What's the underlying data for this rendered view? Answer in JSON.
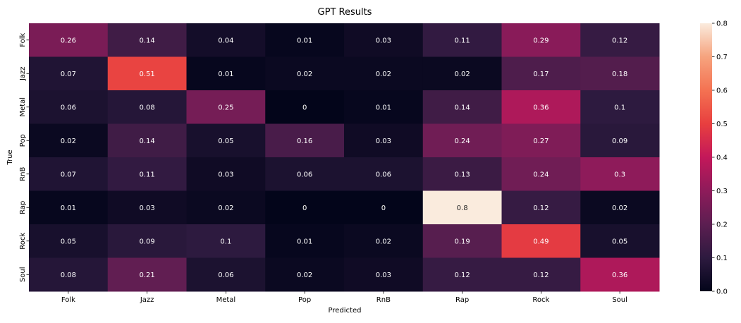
{
  "chart_data": {
    "type": "heatmap",
    "title": "GPT Results",
    "xlabel": "Predicted",
    "ylabel": "True",
    "x_categories": [
      "Folk",
      "Jazz",
      "Metal",
      "Pop",
      "RnB",
      "Rap",
      "Rock",
      "Soul"
    ],
    "y_categories": [
      "Folk",
      "Jazz",
      "Metal",
      "Pop",
      "RnB",
      "Rap",
      "Rock",
      "Soul"
    ],
    "values": [
      [
        0.26,
        0.14,
        0.04,
        0.01,
        0.03,
        0.11,
        0.29,
        0.12
      ],
      [
        0.07,
        0.51,
        0.01,
        0.02,
        0.02,
        0.02,
        0.17,
        0.18
      ],
      [
        0.06,
        0.08,
        0.25,
        0,
        0.01,
        0.14,
        0.36,
        0.1
      ],
      [
        0.02,
        0.14,
        0.05,
        0.16,
        0.03,
        0.24,
        0.27,
        0.09
      ],
      [
        0.07,
        0.11,
        0.03,
        0.06,
        0.06,
        0.13,
        0.24,
        0.3
      ],
      [
        0.01,
        0.03,
        0.02,
        0,
        0,
        0.8,
        0.12,
        0.02
      ],
      [
        0.05,
        0.09,
        0.1,
        0.01,
        0.02,
        0.19,
        0.49,
        0.05
      ],
      [
        0.08,
        0.21,
        0.06,
        0.02,
        0.03,
        0.12,
        0.12,
        0.36
      ]
    ],
    "colorbar": {
      "range": [
        0,
        0.8
      ],
      "ticks": [
        "0.0",
        "0.1",
        "0.2",
        "0.3",
        "0.4",
        "0.5",
        "0.6",
        "0.7",
        "0.8"
      ]
    },
    "colormap": "rocket",
    "colormap_stops": [
      "#03051A",
      "#2D1A3F",
      "#5C1E51",
      "#8E1B5A",
      "#C3185A",
      "#E83F3F",
      "#F47252",
      "#F6A37E",
      "#FAEBDD"
    ]
  }
}
